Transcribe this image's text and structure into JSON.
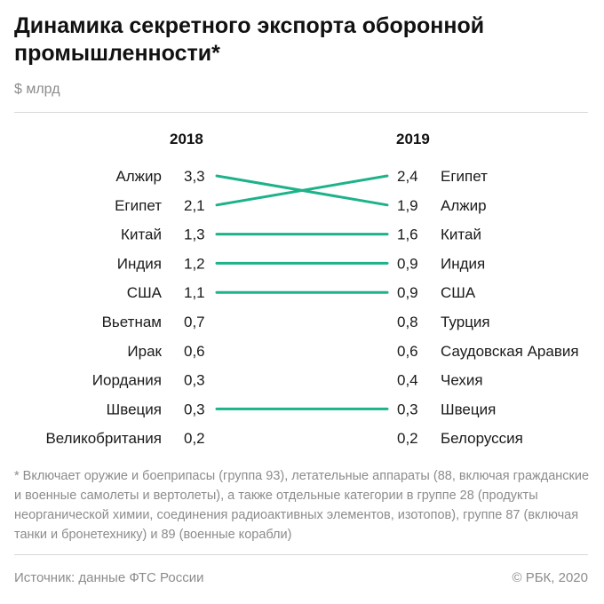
{
  "header": {
    "title": "Динамика секретного экспорта оборонной промышленности*",
    "unit": "$ млрд"
  },
  "footer": {
    "footnote": "* Включает оружие и боеприпасы (группа 93), летательные аппараты (88, включая гражданские и военные самолеты и вертолеты), а также отдельные категории в группе 28 (продукты неорганической химии, соединения радиоактивных элементов, изотопов), группе 87 (включая танки и бронетехнику) и 89 (военные корабли)",
    "source": "Источник: данные ФТС России",
    "copyright": "© РБК, 2020"
  },
  "colors": {
    "line": "#1db28a",
    "text": "#1a1a1a",
    "muted": "#8c8c8c"
  },
  "chart_data": {
    "type": "slope",
    "years": [
      "2018",
      "2019"
    ],
    "left": [
      {
        "country": "Алжир",
        "value": "3,3"
      },
      {
        "country": "Египет",
        "value": "2,1"
      },
      {
        "country": "Китай",
        "value": "1,3"
      },
      {
        "country": "Индия",
        "value": "1,2"
      },
      {
        "country": "США",
        "value": "1,1"
      },
      {
        "country": "Вьетнам",
        "value": "0,7"
      },
      {
        "country": "Ирак",
        "value": "0,6"
      },
      {
        "country": "Иордания",
        "value": "0,3"
      },
      {
        "country": "Швеция",
        "value": "0,3"
      },
      {
        "country": "Великобритания",
        "value": "0,2"
      }
    ],
    "right": [
      {
        "country": "Египет",
        "value": "2,4"
      },
      {
        "country": "Алжир",
        "value": "1,9"
      },
      {
        "country": "Китай",
        "value": "1,6"
      },
      {
        "country": "Индия",
        "value": "0,9"
      },
      {
        "country": "США",
        "value": "0,9"
      },
      {
        "country": "Турция",
        "value": "0,8"
      },
      {
        "country": "Саудовская Аравия",
        "value": "0,6"
      },
      {
        "country": "Чехия",
        "value": "0,4"
      },
      {
        "country": "Швеция",
        "value": "0,3"
      },
      {
        "country": "Белоруссия",
        "value": "0,2"
      }
    ],
    "connections": [
      {
        "country": "Алжир",
        "from_rank": 1,
        "to_rank": 2
      },
      {
        "country": "Египет",
        "from_rank": 2,
        "to_rank": 1
      },
      {
        "country": "Китай",
        "from_rank": 3,
        "to_rank": 3
      },
      {
        "country": "Индия",
        "from_rank": 4,
        "to_rank": 4
      },
      {
        "country": "США",
        "from_rank": 5,
        "to_rank": 5
      },
      {
        "country": "Швеция",
        "from_rank": 9,
        "to_rank": 9
      }
    ]
  }
}
